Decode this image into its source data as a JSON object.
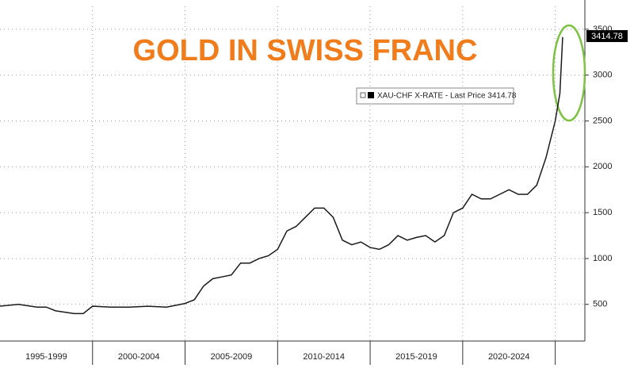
{
  "chart_data": {
    "type": "line",
    "title": "GOLD IN SWISS FRANC",
    "x": [
      1995,
      1996,
      1997,
      1997.5,
      1998,
      1999,
      1999.5,
      2000,
      2001,
      2002,
      2003,
      2004,
      2005,
      2005.5,
      2006,
      2006.5,
      2007,
      2007.5,
      2008,
      2008.5,
      2009,
      2009.5,
      2010,
      2010.5,
      2011,
      2011.5,
      2012,
      2012.5,
      2013,
      2013.5,
      2014,
      2014.5,
      2015,
      2015.5,
      2016,
      2016.5,
      2017,
      2017.5,
      2018,
      2018.5,
      2019,
      2019.5,
      2020,
      2020.5,
      2021,
      2021.5,
      2022,
      2022.5,
      2023,
      2023.5,
      2024,
      2024.5,
      2025,
      2025.25,
      2025.4
    ],
    "series": [
      {
        "name": "XAU-CHF X-RATE - Last Price 3414.78",
        "color": "#1a1a1a",
        "values": [
          480,
          500,
          470,
          470,
          430,
          400,
          400,
          480,
          470,
          470,
          480,
          470,
          510,
          550,
          700,
          780,
          800,
          820,
          950,
          950,
          1000,
          1030,
          1100,
          1300,
          1350,
          1450,
          1550,
          1550,
          1450,
          1200,
          1150,
          1180,
          1120,
          1100,
          1150,
          1250,
          1200,
          1230,
          1250,
          1180,
          1250,
          1500,
          1550,
          1700,
          1650,
          1650,
          1700,
          1750,
          1700,
          1700,
          1800,
          2100,
          2500,
          2800,
          3414.78
        ]
      }
    ],
    "last_price": 3414.78,
    "xlim": [
      1995,
      2026.6
    ],
    "xperiods": [
      {
        "start": 1995,
        "end": 2000,
        "label": "1995-1999"
      },
      {
        "start": 2000,
        "end": 2005,
        "label": "2000-2004"
      },
      {
        "start": 2005,
        "end": 2010,
        "label": "2005-2009"
      },
      {
        "start": 2010,
        "end": 2015,
        "label": "2010-2014"
      },
      {
        "start": 2015,
        "end": 2020,
        "label": "2015-2019"
      },
      {
        "start": 2020,
        "end": 2025,
        "label": "2020-2024"
      }
    ],
    "ylim": [
      100,
      3750
    ],
    "yticks": [
      500,
      1000,
      1500,
      2000,
      2500,
      3000,
      3500
    ],
    "grid": true
  }
}
